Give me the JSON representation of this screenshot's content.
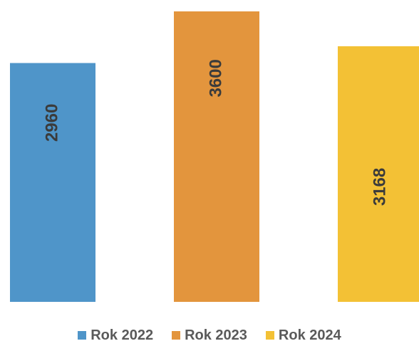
{
  "chart_data": {
    "type": "bar",
    "categories": [
      "Rok 2022",
      "Rok 2023",
      "Rok 2024"
    ],
    "values": [
      2960,
      3600,
      3168
    ],
    "series": [
      {
        "name": "Rok 2022",
        "value": 2960,
        "color": "#4f95c9"
      },
      {
        "name": "Rok 2023",
        "value": 3600,
        "color": "#e3953d"
      },
      {
        "name": "Rok 2024",
        "value": 3168,
        "color": "#f3c135"
      }
    ],
    "data_labels": [
      "2960",
      "3600",
      "3168"
    ],
    "title": "",
    "xlabel": "",
    "ylabel": "",
    "ylim": [
      0,
      3600
    ],
    "grid": false,
    "legend_placement": "bottom",
    "data_label_orientation": "vertical"
  }
}
